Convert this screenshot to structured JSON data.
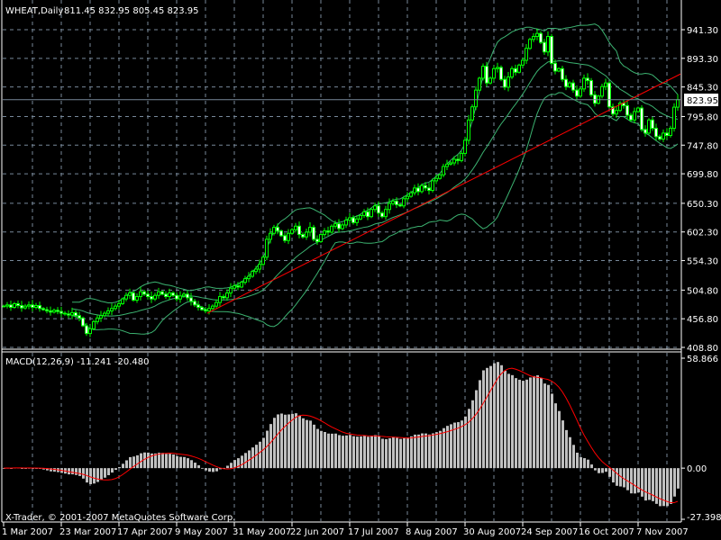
{
  "window": {
    "symbol_label": "WHEAT,Daily",
    "ohlc_label": "811.45 832.95 805.45 823.95",
    "macd_label": "MACD(12,26,9) -11.241 -20.480",
    "copyright": "X-Trader, © 2001-2007 MetaQuotes Software Corp.",
    "current_price_label": "823.95"
  },
  "colors": {
    "background": "#000000",
    "candle": "#00ff00",
    "bollinger": "#3cb371",
    "trendline": "#ff0000",
    "histogram": "#c0c0c0",
    "signal": "#ff0000",
    "grid": "#778899",
    "current_price_line": "#778899"
  },
  "chart_data": [
    {
      "type": "candlestick",
      "title": "WHEAT,Daily",
      "timeframe": "Daily",
      "last_bar": {
        "open": 811.45,
        "high": 832.95,
        "low": 805.45,
        "close": 823.95
      },
      "ylim": [
        408.8,
        941.3
      ],
      "y_ticks": [
        "941.30",
        "893.30",
        "845.30",
        "795.80",
        "747.80",
        "699.80",
        "650.30",
        "602.30",
        "554.30",
        "504.80",
        "456.80",
        "408.80"
      ],
      "x_ticks": [
        "1 Mar 2007",
        "23 Mar 2007",
        "17 Apr 2007",
        "9 May 2007",
        "31 May 2007",
        "22 Jun 2007",
        "17 Jul 2007",
        "8 Aug 2007",
        "30 Aug 2007",
        "24 Sep 2007",
        "16 Oct 2007",
        "7 Nov 2007"
      ],
      "grid": true,
      "indicators": [
        "Bollinger Bands"
      ],
      "trendline": {
        "from_date": "22 May 2007",
        "from_price": 466,
        "to_date": "15 Nov 2007",
        "to_price": 867
      },
      "close": [
        478,
        480,
        476,
        482,
        479,
        475,
        478,
        480,
        476,
        479,
        474,
        472,
        470,
        468,
        471,
        469,
        466,
        465,
        463,
        467,
        462,
        458,
        445,
        432,
        440,
        452,
        458,
        462,
        466,
        470,
        474,
        478,
        482,
        490,
        496,
        500,
        488,
        494,
        502,
        498,
        494,
        490,
        496,
        502,
        498,
        494,
        500,
        496,
        490,
        495,
        498,
        492,
        486,
        480,
        476,
        472,
        470,
        474,
        478,
        484,
        494,
        492,
        500,
        508,
        512,
        510,
        518,
        524,
        528,
        536,
        540,
        548,
        560,
        590,
        600,
        610,
        604,
        596,
        588,
        600,
        606,
        612,
        598,
        594,
        602,
        610,
        590,
        586,
        598,
        604,
        602,
        612,
        616,
        608,
        614,
        622,
        626,
        618,
        624,
        630,
        636,
        628,
        640,
        646,
        634,
        628,
        640,
        650,
        654,
        648,
        646,
        658,
        662,
        668,
        676,
        670,
        680,
        676,
        672,
        688,
        692,
        698,
        712,
        716,
        718,
        724,
        722,
        734,
        756,
        790,
        812,
        840,
        860,
        880,
        852,
        860,
        876,
        878,
        858,
        845,
        862,
        876,
        870,
        882,
        890,
        910,
        925,
        930,
        935,
        920,
        904,
        930,
        885,
        872,
        876,
        858,
        846,
        852,
        840,
        830,
        842,
        860,
        856,
        832,
        818,
        830,
        846,
        852,
        812,
        800,
        806,
        818,
        814,
        798,
        790,
        804,
        810,
        774,
        768,
        790,
        776,
        762,
        758,
        768,
        764,
        776,
        811.45,
        823.95
      ]
    },
    {
      "type": "bar",
      "title": "MACD(12,26,9)",
      "values_shown": {
        "macd": -11.241,
        "signal": -20.48
      },
      "y_ticks": [
        "58.866",
        "0.00",
        "-27.398"
      ],
      "ylim": [
        -27.398,
        58.866
      ],
      "series": [
        {
          "name": "MACD",
          "kind": "histogram"
        },
        {
          "name": "Signal",
          "kind": "line"
        }
      ]
    }
  ]
}
